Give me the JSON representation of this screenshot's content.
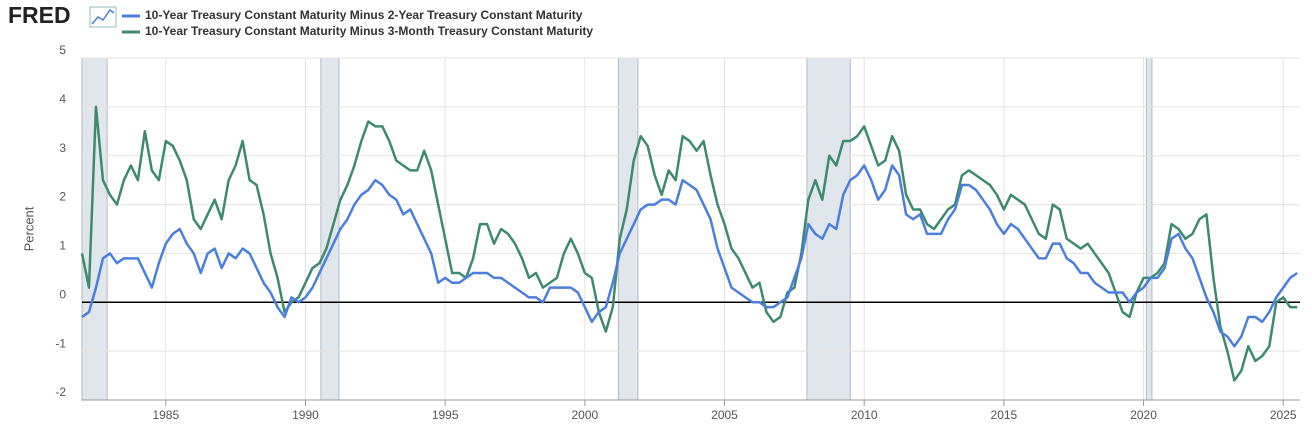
{
  "chart_data": {
    "type": "line",
    "logo": "FRED",
    "ylabel": "Percent",
    "xlim": [
      1982,
      2025.6
    ],
    "ylim": [
      -2,
      5
    ],
    "xticks": [
      1985,
      1990,
      1995,
      2000,
      2005,
      2010,
      2015,
      2020,
      2025
    ],
    "yticks": [
      -2,
      -1,
      0,
      1,
      2,
      3,
      4,
      5
    ],
    "grid": true,
    "recessions": [
      [
        1982,
        1982.9
      ],
      [
        1990.55,
        1991.2
      ],
      [
        2001.2,
        2001.9
      ],
      [
        2007.95,
        2009.5
      ],
      [
        2020.1,
        2020.3
      ]
    ],
    "x": [
      1982,
      1982.25,
      1982.5,
      1982.75,
      1983,
      1983.25,
      1983.5,
      1983.75,
      1984,
      1984.25,
      1984.5,
      1984.75,
      1985,
      1985.25,
      1985.5,
      1985.75,
      1986,
      1986.25,
      1986.5,
      1986.75,
      1987,
      1987.25,
      1987.5,
      1987.75,
      1988,
      1988.25,
      1988.5,
      1988.75,
      1989,
      1989.25,
      1989.5,
      1989.75,
      1990,
      1990.25,
      1990.5,
      1990.75,
      1991,
      1991.25,
      1991.5,
      1991.75,
      1992,
      1992.25,
      1992.5,
      1992.75,
      1993,
      1993.25,
      1993.5,
      1993.75,
      1994,
      1994.25,
      1994.5,
      1994.75,
      1995,
      1995.25,
      1995.5,
      1995.75,
      1996,
      1996.25,
      1996.5,
      1996.75,
      1997,
      1997.25,
      1997.5,
      1997.75,
      1998,
      1998.25,
      1998.5,
      1998.75,
      1999,
      1999.25,
      1999.5,
      1999.75,
      2000,
      2000.25,
      2000.5,
      2000.75,
      2001,
      2001.25,
      2001.5,
      2001.75,
      2002,
      2002.25,
      2002.5,
      2002.75,
      2003,
      2003.25,
      2003.5,
      2003.75,
      2004,
      2004.25,
      2004.5,
      2004.75,
      2005,
      2005.25,
      2005.5,
      2005.75,
      2006,
      2006.25,
      2006.5,
      2006.75,
      2007,
      2007.25,
      2007.5,
      2007.75,
      2008,
      2008.25,
      2008.5,
      2008.75,
      2009,
      2009.25,
      2009.5,
      2009.75,
      2010,
      2010.25,
      2010.5,
      2010.75,
      2011,
      2011.25,
      2011.5,
      2011.75,
      2012,
      2012.25,
      2012.5,
      2012.75,
      2013,
      2013.25,
      2013.5,
      2013.75,
      2014,
      2014.25,
      2014.5,
      2014.75,
      2015,
      2015.25,
      2015.5,
      2015.75,
      2016,
      2016.25,
      2016.5,
      2016.75,
      2017,
      2017.25,
      2017.5,
      2017.75,
      2018,
      2018.25,
      2018.5,
      2018.75,
      2019,
      2019.25,
      2019.5,
      2019.75,
      2020,
      2020.25,
      2020.5,
      2020.75,
      2021,
      2021.25,
      2021.5,
      2021.75,
      2022,
      2022.25,
      2022.5,
      2022.75,
      2023,
      2023.25,
      2023.5,
      2023.75,
      2024,
      2024.25,
      2024.5,
      2024.75,
      2025,
      2025.25,
      2025.5
    ],
    "series": [
      {
        "name": "10-Year Treasury Constant Maturity Minus 2-Year Treasury Constant Maturity",
        "color": "#4a7fe0",
        "values": [
          -0.3,
          -0.2,
          0.3,
          0.9,
          1.0,
          0.8,
          0.9,
          0.9,
          0.9,
          0.6,
          0.3,
          0.8,
          1.2,
          1.4,
          1.5,
          1.2,
          1.0,
          0.6,
          1.0,
          1.1,
          0.7,
          1.0,
          0.9,
          1.1,
          1.0,
          0.7,
          0.4,
          0.2,
          -0.1,
          -0.3,
          0.1,
          0.0,
          0.1,
          0.3,
          0.6,
          0.9,
          1.2,
          1.5,
          1.7,
          2.0,
          2.2,
          2.3,
          2.5,
          2.4,
          2.2,
          2.1,
          1.8,
          1.9,
          1.6,
          1.3,
          1.0,
          0.4,
          0.5,
          0.4,
          0.4,
          0.5,
          0.6,
          0.6,
          0.6,
          0.5,
          0.5,
          0.4,
          0.3,
          0.2,
          0.1,
          0.1,
          0.0,
          0.3,
          0.3,
          0.3,
          0.3,
          0.2,
          -0.1,
          -0.4,
          -0.2,
          -0.1,
          0.4,
          1.0,
          1.3,
          1.6,
          1.9,
          2.0,
          2.0,
          2.1,
          2.1,
          2.0,
          2.5,
          2.4,
          2.3,
          2.0,
          1.7,
          1.1,
          0.7,
          0.3,
          0.2,
          0.1,
          0.0,
          0.0,
          -0.1,
          -0.1,
          0.0,
          0.1,
          0.5,
          0.9,
          1.6,
          1.4,
          1.3,
          1.6,
          1.5,
          2.2,
          2.5,
          2.6,
          2.8,
          2.5,
          2.1,
          2.3,
          2.8,
          2.6,
          1.8,
          1.7,
          1.8,
          1.4,
          1.4,
          1.4,
          1.7,
          1.9,
          2.4,
          2.4,
          2.3,
          2.1,
          1.9,
          1.6,
          1.4,
          1.6,
          1.5,
          1.3,
          1.1,
          0.9,
          0.9,
          1.2,
          1.2,
          0.9,
          0.8,
          0.6,
          0.6,
          0.4,
          0.3,
          0.2,
          0.2,
          0.2,
          0.0,
          0.2,
          0.3,
          0.5,
          0.5,
          0.7,
          1.3,
          1.4,
          1.1,
          0.9,
          0.5,
          0.1,
          -0.2,
          -0.6,
          -0.7,
          -0.9,
          -0.7,
          -0.3,
          -0.3,
          -0.4,
          -0.2,
          0.1,
          0.3,
          0.5,
          0.6
        ]
      },
      {
        "name": "10-Year Treasury Constant Maturity Minus 3-Month Treasury Constant Maturity",
        "color": "#3d8a70",
        "values": [
          1.0,
          0.3,
          4.0,
          2.5,
          2.2,
          2.0,
          2.5,
          2.8,
          2.5,
          3.5,
          2.7,
          2.5,
          3.3,
          3.2,
          2.9,
          2.5,
          1.7,
          1.5,
          1.8,
          2.1,
          1.7,
          2.5,
          2.8,
          3.3,
          2.5,
          2.4,
          1.8,
          1.0,
          0.5,
          -0.2,
          0.0,
          0.1,
          0.4,
          0.7,
          0.8,
          1.1,
          1.6,
          2.1,
          2.4,
          2.8,
          3.3,
          3.7,
          3.6,
          3.6,
          3.3,
          2.9,
          2.8,
          2.7,
          2.7,
          3.1,
          2.7,
          2.0,
          1.3,
          0.6,
          0.6,
          0.5,
          0.9,
          1.6,
          1.6,
          1.2,
          1.5,
          1.4,
          1.2,
          0.9,
          0.5,
          0.6,
          0.3,
          0.4,
          0.5,
          1.0,
          1.3,
          1.0,
          0.6,
          0.5,
          -0.2,
          -0.6,
          -0.1,
          1.3,
          1.9,
          2.9,
          3.4,
          3.2,
          2.6,
          2.2,
          2.7,
          2.5,
          3.4,
          3.3,
          3.1,
          3.3,
          2.6,
          2.0,
          1.6,
          1.1,
          0.9,
          0.6,
          0.3,
          0.4,
          -0.2,
          -0.4,
          -0.3,
          0.2,
          0.3,
          1.0,
          2.1,
          2.5,
          2.1,
          3.0,
          2.8,
          3.3,
          3.3,
          3.4,
          3.6,
          3.2,
          2.8,
          2.9,
          3.4,
          3.1,
          2.2,
          1.9,
          1.9,
          1.6,
          1.5,
          1.7,
          1.9,
          2.0,
          2.6,
          2.7,
          2.6,
          2.5,
          2.4,
          2.2,
          1.9,
          2.2,
          2.1,
          2.0,
          1.7,
          1.4,
          1.3,
          2.0,
          1.9,
          1.3,
          1.2,
          1.1,
          1.2,
          1.0,
          0.8,
          0.6,
          0.2,
          -0.2,
          -0.3,
          0.2,
          0.5,
          0.5,
          0.6,
          0.8,
          1.6,
          1.5,
          1.3,
          1.4,
          1.7,
          1.8,
          0.5,
          -0.5,
          -1.0,
          -1.6,
          -1.4,
          -0.9,
          -1.2,
          -1.1,
          -0.9,
          0.0,
          0.1,
          -0.1,
          -0.1
        ]
      }
    ]
  }
}
